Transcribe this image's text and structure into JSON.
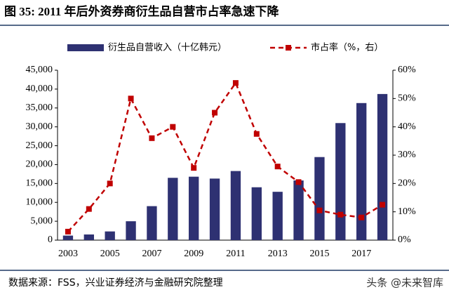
{
  "chart_data": {
    "type": "bar",
    "title": "图 35:  2011 年后外资券商衍生品自营市占率急速下降",
    "source": "数据来源：FSS，兴业证券经济与金融研究院整理",
    "watermark": "头条 @未来智库",
    "categories": [
      "2003",
      null,
      "2005",
      null,
      "2007",
      null,
      "2009",
      null,
      "2011",
      null,
      "2013",
      null,
      "2015",
      null,
      "2017",
      null
    ],
    "series": [
      {
        "name": "衍生品自营收入（十亿韩元）",
        "type": "bar",
        "color": "#2e3172",
        "values": [
          1200,
          1500,
          2300,
          5000,
          9000,
          16500,
          16800,
          16300,
          18300,
          14000,
          12800,
          15800,
          22000,
          31000,
          36300,
          38700
        ]
      },
      {
        "name": "市占率（%，右）",
        "type": "line",
        "axis": "y2",
        "color": "#c00000",
        "values": [
          3,
          11,
          20,
          50,
          36,
          40,
          25.5,
          45,
          55.5,
          37.5,
          26,
          20.5,
          10.5,
          9,
          8,
          12.5
        ]
      }
    ],
    "ylim": [
      0,
      45000
    ],
    "yticks": [
      0,
      {
        "value": 5000,
        "label": "5,000"
      },
      {
        "value": 10000,
        "label": "10,000"
      },
      {
        "value": 15000,
        "label": "15,000"
      },
      {
        "value": 20000,
        "label": "20,000"
      },
      {
        "value": 25000,
        "label": "25,000"
      },
      {
        "value": 30000,
        "label": "30,000"
      },
      {
        "value": 35000,
        "label": "35,000"
      },
      {
        "value": 40000,
        "label": "40,000"
      },
      {
        "value": 45000,
        "label": "45,000"
      }
    ],
    "y2lim": [
      0,
      60
    ],
    "y2ticks": [
      {
        "value": 0,
        "label": "0%"
      },
      {
        "value": 10,
        "label": "10%"
      },
      {
        "value": 20,
        "label": "20%"
      },
      {
        "value": 30,
        "label": "30%"
      },
      {
        "value": 40,
        "label": "40%"
      },
      {
        "value": 50,
        "label": "50%"
      },
      {
        "value": 60,
        "label": "60%"
      }
    ],
    "grid": false
  }
}
